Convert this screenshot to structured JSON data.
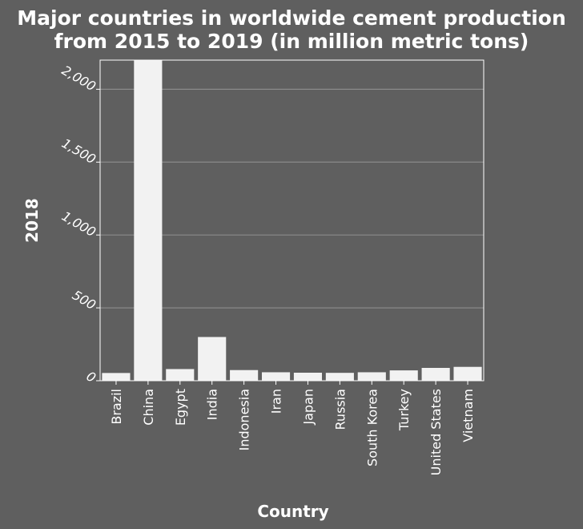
{
  "chart_data": {
    "type": "bar",
    "title_lines": [
      "Major countries in worldwide cement production",
      "from 2015 to 2019 (in million metric tons)"
    ],
    "xlabel": "Country",
    "ylabel": "2018",
    "categories": [
      "Brazil",
      "China",
      "Egypt",
      "India",
      "Indonesia",
      "Iran",
      "Japan",
      "Russia",
      "South Korea",
      "Turkey",
      "United States",
      "Vietnam"
    ],
    "values": [
      53,
      2200,
      80,
      300,
      73,
      58,
      55,
      54,
      58,
      71,
      88,
      95
    ],
    "yticks": [
      0,
      500,
      1000,
      1500,
      2000
    ],
    "ytick_labels": [
      "0",
      "500",
      "1,000",
      "1,500",
      "2,000"
    ],
    "ylim": [
      0,
      2200
    ],
    "grid": true,
    "colors": {
      "background": "#5f5f5f",
      "bar": "#f2f2f2",
      "grid": "#8a8a8a",
      "text": "#ffffff"
    }
  }
}
